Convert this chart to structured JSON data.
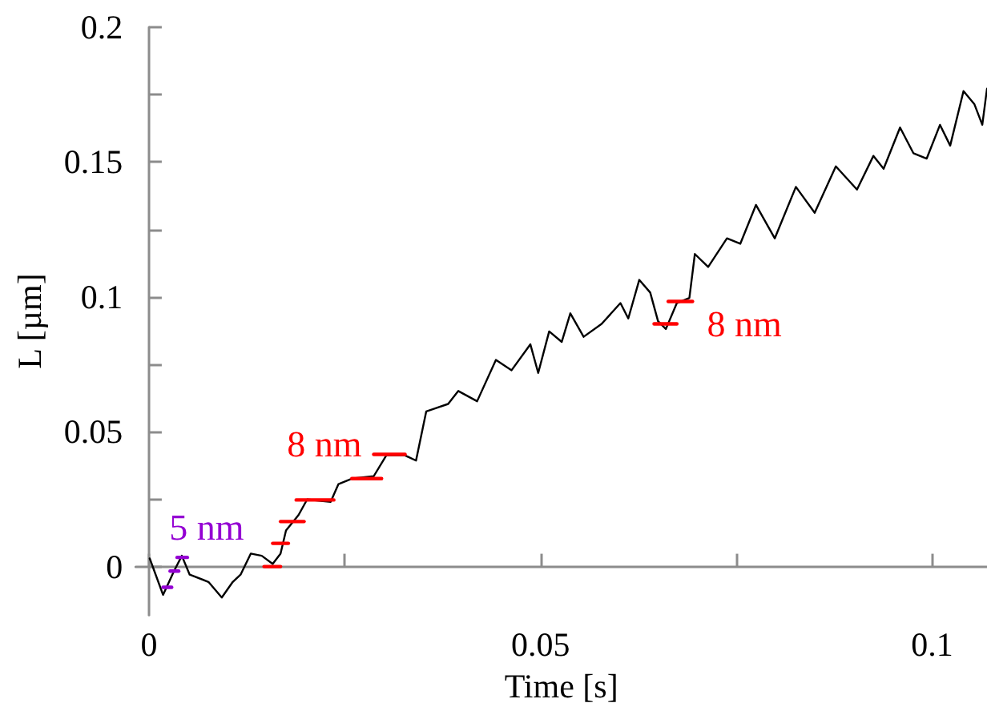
{
  "chart_data": {
    "type": "line",
    "xlabel": "Time [s]",
    "ylabel": "L [µm]",
    "xlim": [
      -0.0017,
      0.107
    ],
    "ylim": [
      -0.018,
      0.2
    ],
    "xticks": [
      0,
      {
        "value": 0.025,
        "label": null
      },
      0.05,
      {
        "value": 0.075,
        "label": null
      },
      0.1
    ],
    "yticks": [
      0,
      {
        "value": 0.025,
        "label": null
      },
      0.05,
      {
        "value": 0.075,
        "label": null
      },
      0.1,
      {
        "value": 0.125,
        "label": null
      },
      0.15,
      {
        "value": 0.175,
        "label": null
      },
      0.2
    ],
    "grid": false,
    "marker": "none",
    "line_style": "solid",
    "series": [
      {
        "color": "#000000",
        "x": [
          0.0001,
          0.0018,
          0.0032,
          0.0042,
          0.0052,
          0.0076,
          0.0093,
          0.0107,
          0.0117,
          0.013,
          0.0144,
          0.0158,
          0.0168,
          0.0175,
          0.0191,
          0.0202,
          0.0232,
          0.0242,
          0.0259,
          0.0287,
          0.0303,
          0.0327,
          0.0341,
          0.0354,
          0.0382,
          0.0395,
          0.0419,
          0.0443,
          0.0463,
          0.0487,
          0.0497,
          0.0511,
          0.0527,
          0.0538,
          0.0555,
          0.0578,
          0.0602,
          0.0612,
          0.0626,
          0.064,
          0.065,
          0.066,
          0.0674,
          0.069,
          0.0697,
          0.0714,
          0.0738,
          0.0755,
          0.0775,
          0.0799,
          0.0826,
          0.085,
          0.0877,
          0.0904,
          0.0925,
          0.0938,
          0.0959,
          0.0976,
          0.0993,
          0.101,
          0.1023,
          0.104,
          0.1054,
          0.1064,
          0.107
        ],
        "values": [
          0.003,
          -0.0105,
          -0.0017,
          0.004,
          -0.003,
          -0.0057,
          -0.0115,
          -0.0057,
          -0.003,
          0.0048,
          0.004,
          0.001,
          0.0048,
          0.0134,
          0.0191,
          0.0249,
          0.024,
          0.0306,
          0.0326,
          0.0335,
          0.0412,
          0.0412,
          0.0393,
          0.0575,
          0.0603,
          0.0651,
          0.0613,
          0.0766,
          0.0728,
          0.0824,
          0.0718,
          0.0872,
          0.0833,
          0.0939,
          0.0852,
          0.09,
          0.0977,
          0.092,
          0.1063,
          0.1016,
          0.091,
          0.0881,
          0.0977,
          0.0996,
          0.1159,
          0.1111,
          0.1217,
          0.1197,
          0.1341,
          0.1217,
          0.1408,
          0.1312,
          0.1484,
          0.1398,
          0.1523,
          0.1475,
          0.1628,
          0.1533,
          0.1513,
          0.1638,
          0.1561,
          0.1763,
          0.1714,
          0.1638,
          0.1772
        ]
      },
      {
        "color": "#9400d3",
        "x": [
          0.0018,
          0.0029
        ],
        "values": [
          -0.0077,
          -0.0077
        ]
      },
      {
        "color": "#9400d3",
        "x": [
          0.0027,
          0.0038
        ],
        "values": [
          -0.0017,
          -0.0017
        ]
      },
      {
        "name": "5 nm",
        "color": "#9400d3",
        "x": [
          0.0036,
          0.0049
        ],
        "values": [
          0.0034,
          0.0034
        ]
      },
      {
        "color": "#ff0000",
        "x": [
          0.0147,
          0.0168
        ],
        "values": [
          0,
          0
        ]
      },
      {
        "color": "#ff0000",
        "x": [
          0.0158,
          0.0178
        ],
        "values": [
          0.0086,
          0.0086
        ]
      },
      {
        "color": "#ff0000",
        "x": [
          0.0168,
          0.0198
        ],
        "values": [
          0.0167,
          0.0167
        ]
      },
      {
        "color": "#ff0000",
        "x": [
          0.0188,
          0.0236
        ],
        "values": [
          0.0247,
          0.0247
        ]
      },
      {
        "color": "#ff0000",
        "x": [
          0.0259,
          0.0297
        ],
        "values": [
          0.0326,
          0.0326
        ]
      },
      {
        "name": "8 nm",
        "color": "#ff0000",
        "x": [
          0.0287,
          0.0327
        ],
        "values": [
          0.0416,
          0.0416
        ]
      },
      {
        "color": "#ff0000",
        "x": [
          0.0645,
          0.0674
        ],
        "values": [
          0.09,
          0.09
        ]
      },
      {
        "name": "8 nm",
        "color": "#ff0000",
        "x": [
          0.0663,
          0.0694
        ],
        "values": [
          0.0983,
          0.0983
        ]
      }
    ]
  }
}
